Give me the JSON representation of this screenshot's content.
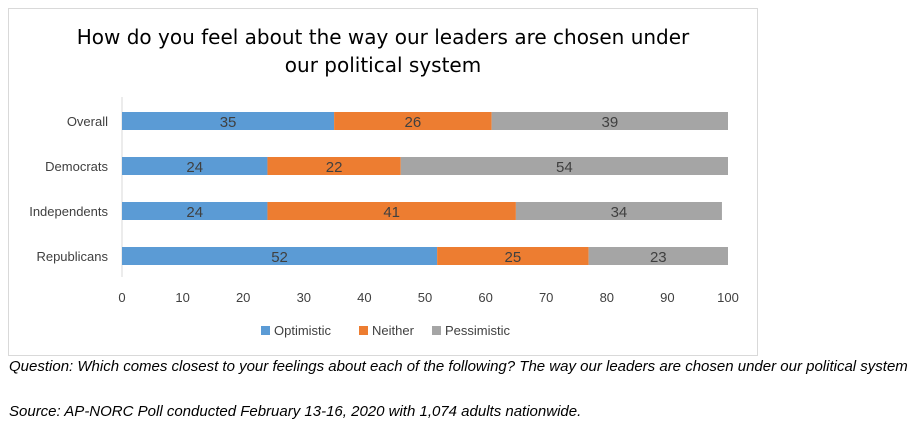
{
  "chart_data": {
    "type": "bar",
    "orientation": "horizontal",
    "stacked": true,
    "title_lines": [
      "How do you feel about the way our leaders are chosen under",
      "our political system"
    ],
    "categories": [
      "Overall",
      "Democrats",
      "Independents",
      "Republicans"
    ],
    "series": [
      {
        "name": "Optimistic",
        "color": "#5b9bd5",
        "values": [
          35,
          24,
          24,
          52
        ]
      },
      {
        "name": "Neither",
        "color": "#ed7d31",
        "values": [
          26,
          22,
          41,
          25
        ]
      },
      {
        "name": "Pessimistic",
        "color": "#a5a5a5",
        "values": [
          39,
          54,
          34,
          23
        ]
      }
    ],
    "xlim": [
      0,
      100
    ],
    "xticks": [
      0,
      10,
      20,
      30,
      40,
      50,
      60,
      70,
      80,
      90,
      100
    ],
    "grid": false,
    "legend_position": "bottom"
  },
  "caption": {
    "question": "Question: Which comes closest to your feelings about each of the following? The way our leaders are chosen under our political system",
    "source": "Source: AP-NORC Poll conducted February 13-16, 2020 with 1,074 adults nationwide."
  }
}
